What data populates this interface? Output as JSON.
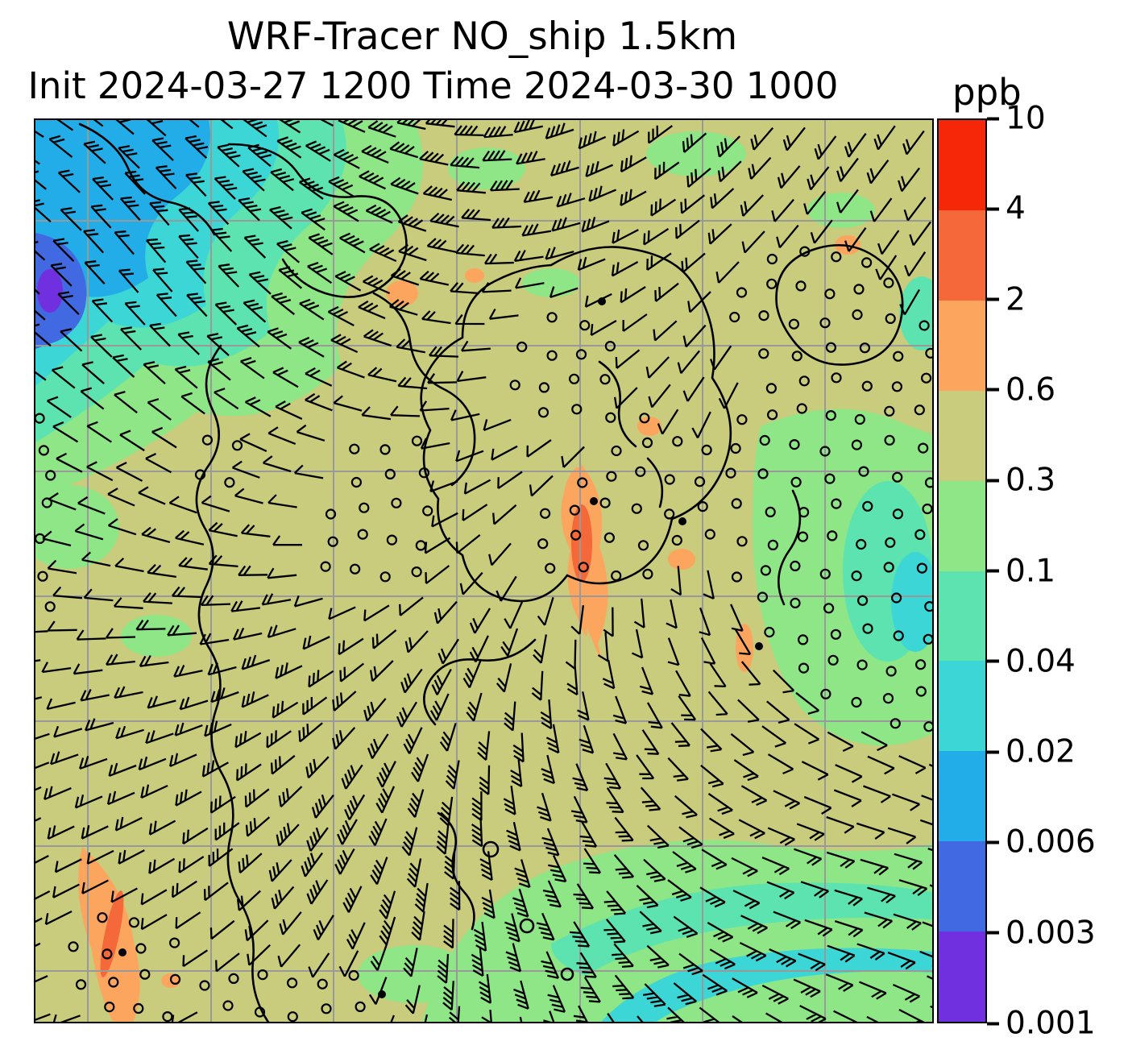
{
  "title": {
    "line1": "WRF-Tracer NO_ship 1.5km",
    "line2": "Init 2024-03-27 1200 Time 2024-03-30 1000",
    "units_label": "ppb"
  },
  "chart_data": {
    "type": "heatmap",
    "title": "WRF-Tracer NO_ship 1.5km",
    "subtitle": "Init 2024-03-27 1200 Time 2024-03-30 1000",
    "model": "WRF-Tracer",
    "tracer": "NO_ship",
    "level": "1.5km",
    "init_time": "2024-03-27 1200",
    "valid_time": "2024-03-30 1000",
    "units": "ppb",
    "legend_position": "right vertical colorbar",
    "grid": "gray lat/lon gridlines on",
    "overlays": [
      "wind barbs",
      "calm-wind open circles",
      "black coastlines",
      "station dots"
    ],
    "colorbar": {
      "orientation": "vertical",
      "scale": "discrete log-spaced levels",
      "tick_labels": [
        "10",
        "4",
        "2",
        "0.6",
        "0.3",
        "0.1",
        "0.04",
        "0.02",
        "0.006",
        "0.003",
        "0.001"
      ],
      "segments_top_to_bottom": [
        {
          "range": "4-10",
          "color": "#f52708"
        },
        {
          "range": "2-4",
          "color": "#f4683a"
        },
        {
          "range": "0.6-2",
          "color": "#fba55f"
        },
        {
          "range": "0.3-0.6",
          "color": "#c9cc7c"
        },
        {
          "range": "0.1-0.3",
          "color": "#8ee687"
        },
        {
          "range": "0.04-0.1",
          "color": "#5ce3af"
        },
        {
          "range": "0.02-0.04",
          "color": "#3cd6d6"
        },
        {
          "range": "0.006-0.02",
          "color": "#22ace8"
        },
        {
          "range": "0.003-0.006",
          "color": "#4169e1"
        },
        {
          "range": "0.001-0.003",
          "color": "#7030e0"
        }
      ]
    },
    "field_summary": "Filled tracer concentration: dominant 0.3-0.6 ppb (khaki); 0.04-0.3 ppb green/teal bands to the east and southeast; 0.001-0.02 ppb cyan/blue/violet minimum in the northwest corner; local 0.6-4 ppb orange maxima in the center, east and southwest corner"
  },
  "palette": {
    "khaki": "#c9cc7c",
    "green": "#8ee687",
    "seafoam": "#5ce3af",
    "turquoise": "#3cd6d6",
    "cyan": "#22ace8",
    "blue": "#4169e1",
    "violet": "#7030e0",
    "orange": "#fba55f",
    "deep_orange": "#f4683a",
    "red": "#f52708",
    "gridline": "#999999",
    "coast": "#000000",
    "barb": "#000000"
  }
}
